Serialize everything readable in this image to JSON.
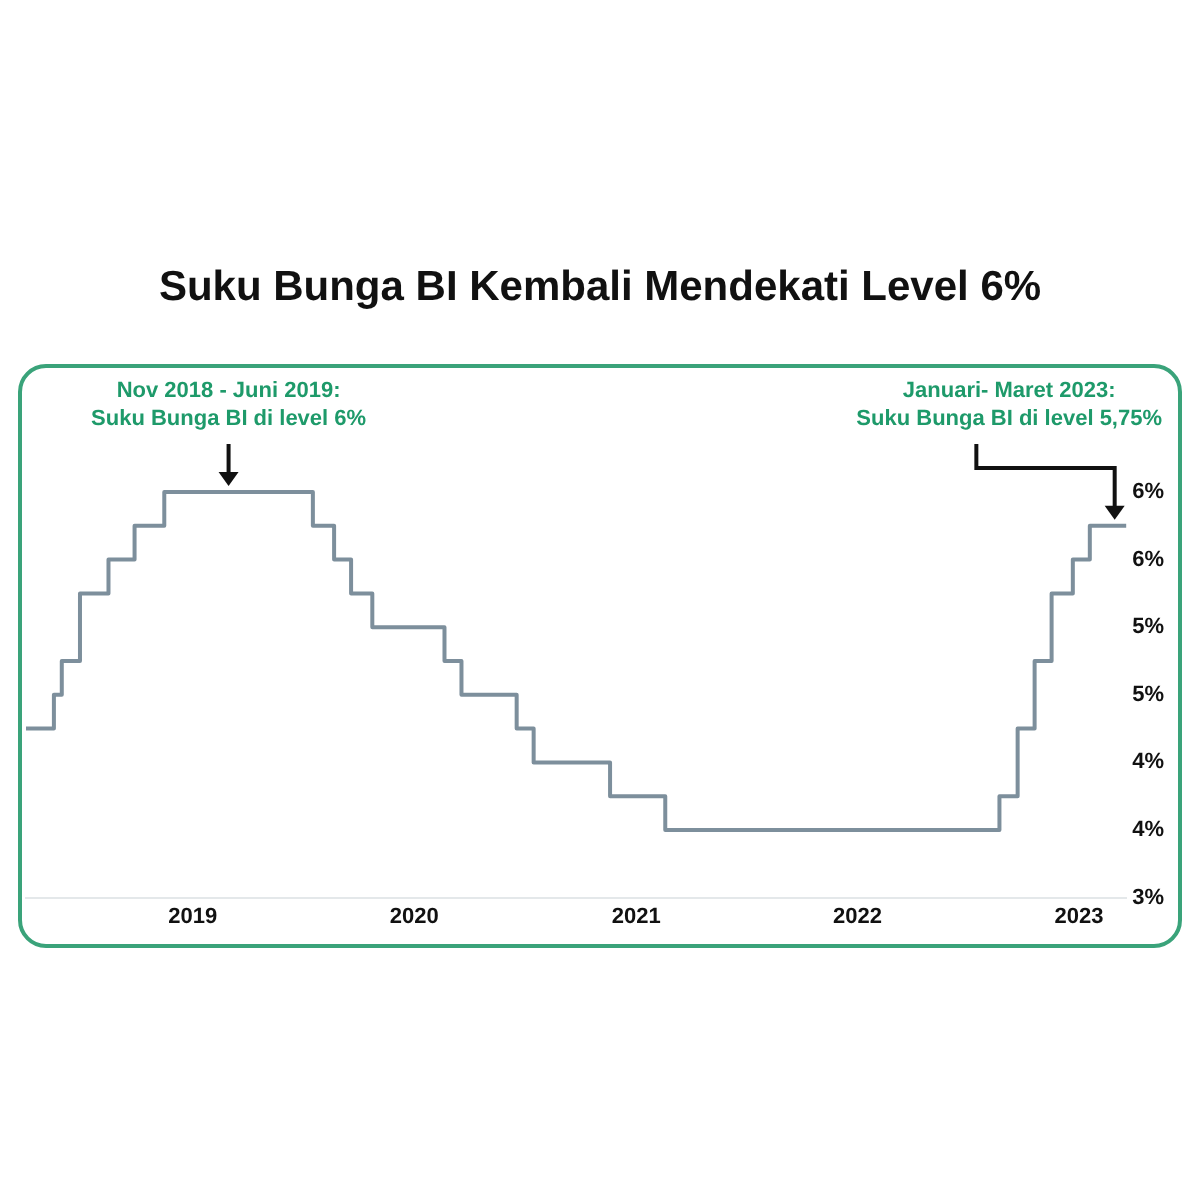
{
  "chart_data": {
    "type": "step",
    "title": "Suku Bunga BI Kembali Mendekati Level 6%",
    "x": [
      "2018-04-01",
      "2018-05-17",
      "2018-05-30",
      "2018-06-29",
      "2018-08-15",
      "2018-09-27",
      "2018-11-15",
      "2019-07-18",
      "2019-08-22",
      "2019-09-19",
      "2019-10-24",
      "2020-02-20",
      "2020-03-19",
      "2020-06-18",
      "2020-07-16",
      "2020-11-19",
      "2021-02-18",
      "2022-08-23",
      "2022-09-22",
      "2022-10-20",
      "2022-11-17",
      "2022-12-22",
      "2023-01-19",
      "2023-03-20"
    ],
    "series": [
      {
        "color": "#7d8f9c",
        "values": [
          4.25,
          4.5,
          4.75,
          5.25,
          5.5,
          5.75,
          6,
          5.75,
          5.5,
          5.25,
          5,
          4.75,
          4.5,
          4.25,
          4,
          3.75,
          3.5,
          3.75,
          4.25,
          4.75,
          5.25,
          5.5,
          5.75,
          5.75
        ]
      }
    ],
    "xlim": [
      "2018-04-01",
      "2023-03-20"
    ],
    "xticks": [
      "2019",
      "2020",
      "2021",
      "2022",
      "2023"
    ],
    "ylim": [
      3,
      6
    ],
    "yticks": [
      {
        "value": 6,
        "label": "6%"
      },
      {
        "value": 5.5,
        "label": "6%"
      },
      {
        "value": 5,
        "label": "5%"
      },
      {
        "value": 4.5,
        "label": "5%"
      },
      {
        "value": 4,
        "label": "4%"
      },
      {
        "value": 3.5,
        "label": "4%"
      },
      {
        "value": 3,
        "label": "3%"
      }
    ],
    "grid": false,
    "legend": false,
    "marker": "none",
    "line_style": "solid",
    "annotations": [
      {
        "text": "Nov 2018 - Juni 2019:\nSuku Bunga BI di level 6%",
        "x": "2019-03-01",
        "y": 6
      },
      {
        "text": "Januari- Maret 2023:\nSuku Bunga BI di level 5,75%",
        "x": "2023-03-01",
        "y": 5.75
      }
    ]
  }
}
